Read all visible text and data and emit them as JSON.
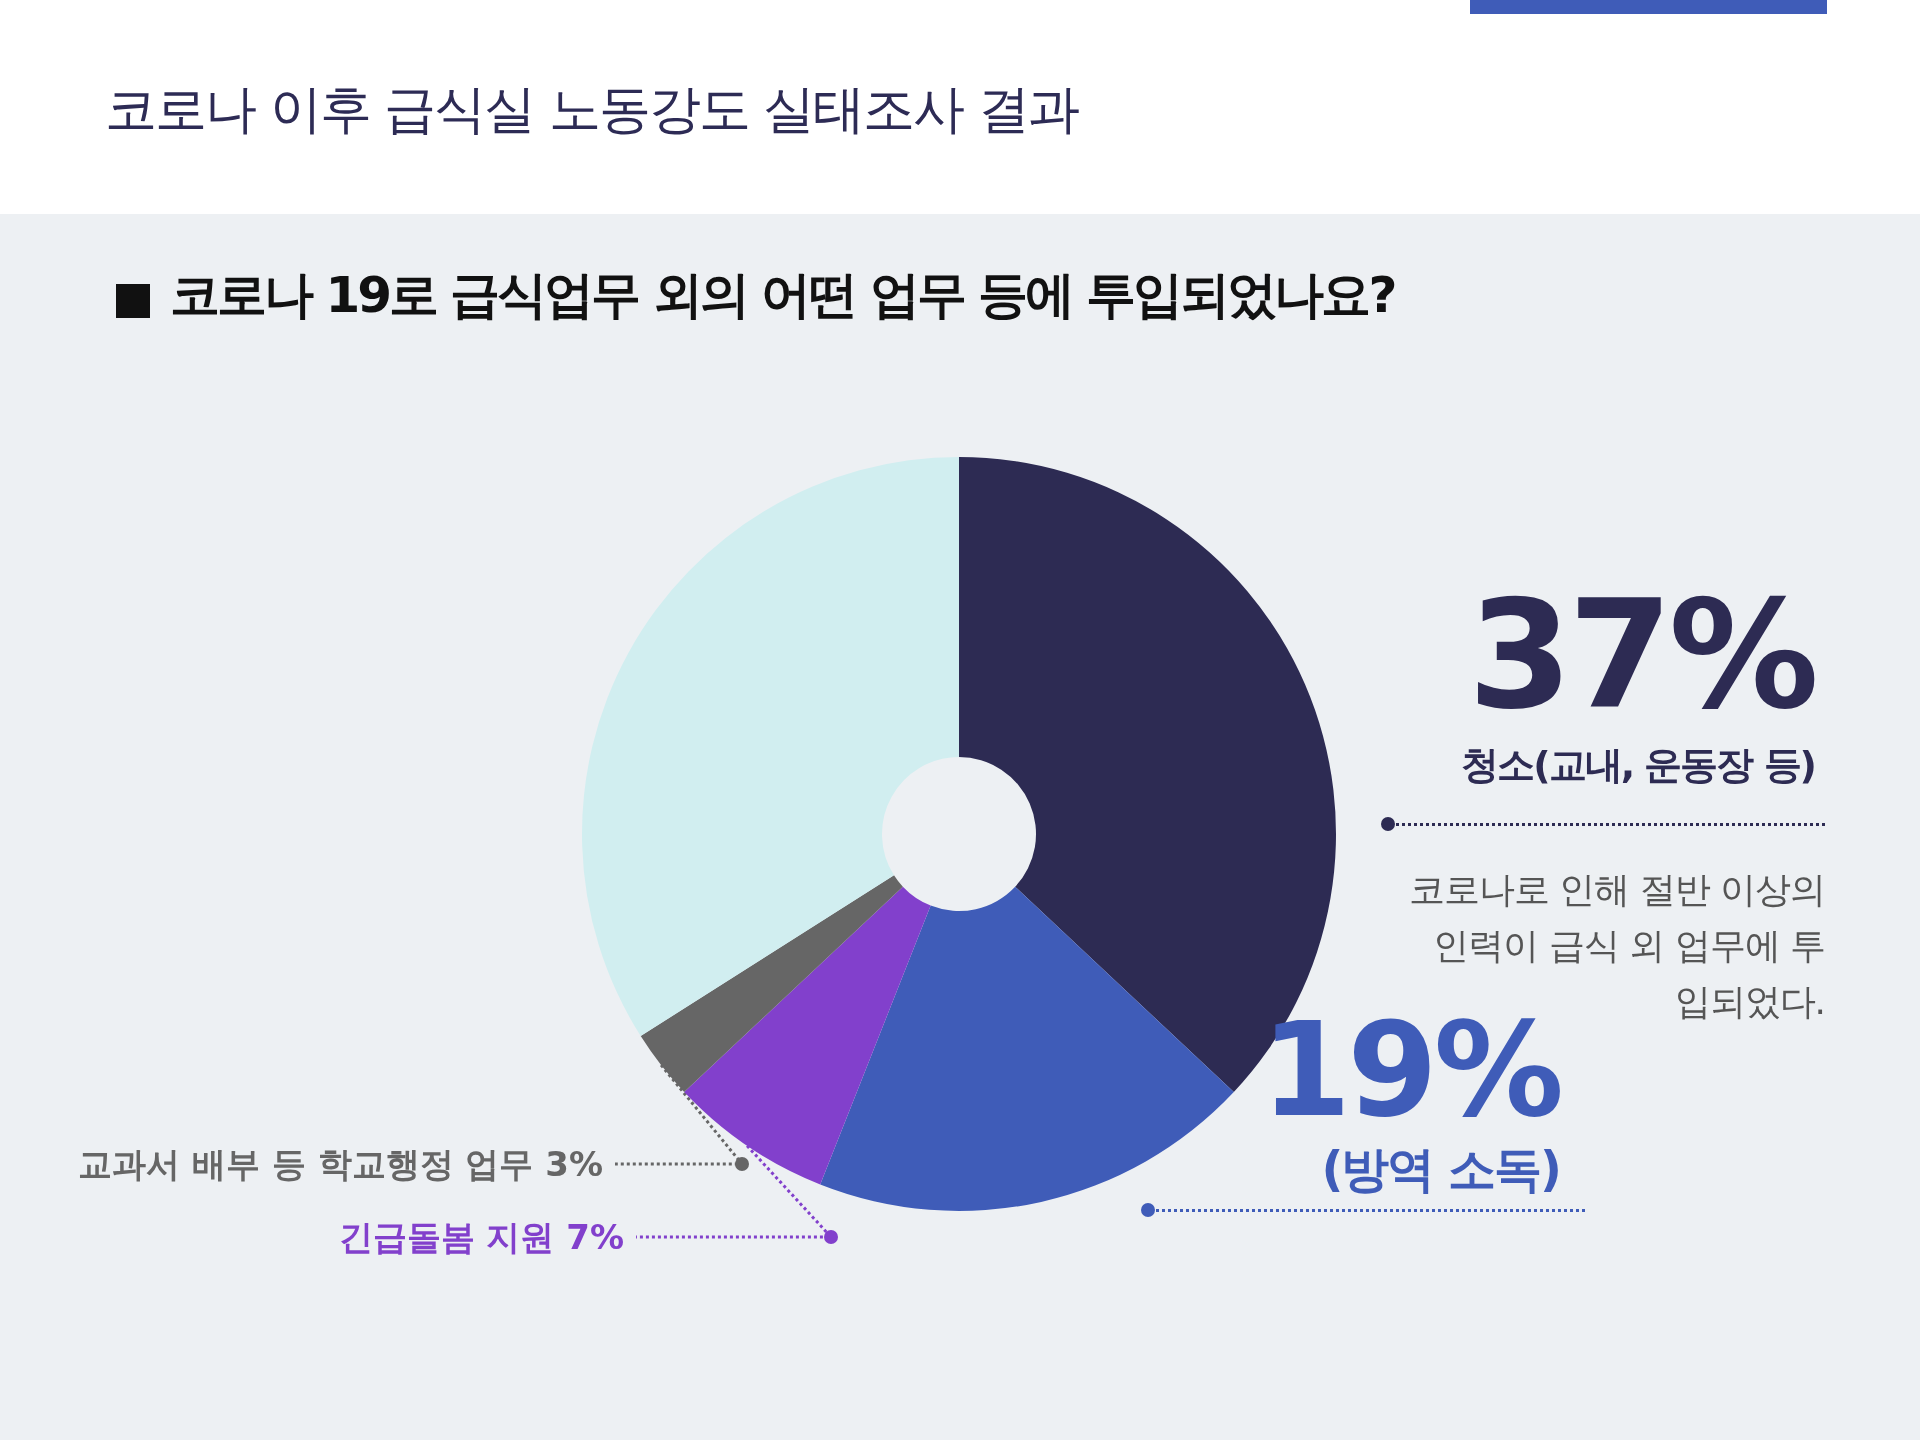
{
  "chart_data": {
    "type": "donut",
    "title": "코로나 이후 급식실 노동강도 실태조사 결과",
    "subtitle": "코로나 19로 급식업무 외의 어떤 업무 등에 투입되었나요?",
    "categories": [
      "청소(교내, 운동장 등)",
      "(방역 소독)",
      "긴급돌봄 지원",
      "교과서 배부 등 학교행정 업무",
      null
    ],
    "values": [
      37,
      19,
      7,
      3,
      34
    ],
    "value_labels": [
      "37%",
      "19%",
      "7%",
      "3%",
      null
    ],
    "colors": [
      "#2d2b53",
      "#3f5cb8",
      "#8240cc",
      "#666666",
      "#d1eef0"
    ],
    "annotations": [
      "코로나로 인해 절반 이상의 인력이 급식 외 업무에 투입되었다."
    ],
    "legend": false
  }
}
